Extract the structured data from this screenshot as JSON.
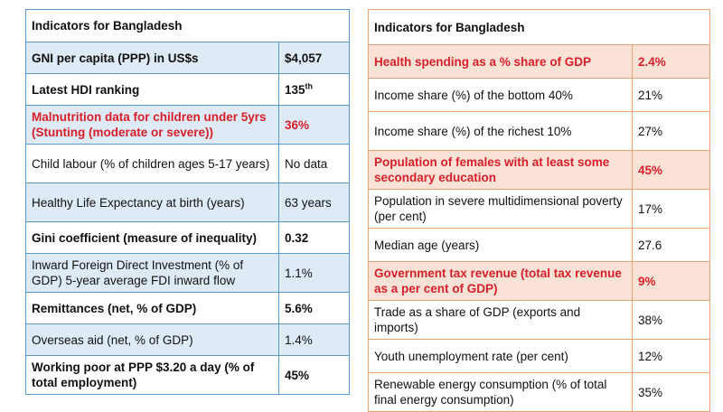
{
  "left_table": {
    "title": "Indicators for Bangladesh",
    "rows": [
      {
        "label": "GNI per capita (PPP) in US$s",
        "value": "$4,057"
      },
      {
        "label": "Latest HDI ranking",
        "value": "135",
        "value_sup": "th"
      },
      {
        "label": "Malnutrition data for children under 5yrs (Stunting (moderate or severe))",
        "value": "36%"
      },
      {
        "label": "Child labour (% of children ages 5-17 years)",
        "value": "No data"
      },
      {
        "label": "Healthy Life Expectancy at birth (years)",
        "value": "63 years"
      },
      {
        "label": "Gini coefficient (measure of inequality)",
        "value": "0.32"
      },
      {
        "label": "Inward Foreign Direct Investment (% of GDP) 5-year average FDI inward flow",
        "value": "1.1%"
      },
      {
        "label": "Remittances (net, % of GDP)",
        "value": "5.6%"
      },
      {
        "label": "Overseas aid (net, % of GDP)",
        "value": "1.4%"
      },
      {
        "label": "Working poor at PPP $3.20 a day (% of total employment)",
        "value": "45%"
      }
    ]
  },
  "right_table": {
    "title": "Indicators for Bangladesh",
    "rows": [
      {
        "label": "Health spending as a % share of GDP",
        "value": "2.4%"
      },
      {
        "label": "Income share (%) of the bottom 40%",
        "value": "21%"
      },
      {
        "label": "Income share (%) of the richest 10%",
        "value": "27%"
      },
      {
        "label": "Population of females with at least some secondary education",
        "value": "45%"
      },
      {
        "label": "Population in severe multidimensional poverty (per cent)",
        "value": "17%"
      },
      {
        "label": "Median age (years)",
        "value": "27.6"
      },
      {
        "label": "Government tax revenue (total tax revenue as a per cent of GDP)",
        "value": "9%"
      },
      {
        "label": "Trade as a share of GDP (exports and imports)",
        "value": "38%"
      },
      {
        "label": "Youth unemployment rate (per cent)",
        "value": "12%"
      },
      {
        "label": "Renewable energy consumption (% of total final energy consumption)",
        "value": "35%"
      }
    ]
  },
  "colors": {
    "left_border": "#5b9bd5",
    "left_shade": "#deeaf6",
    "right_border": "#f0a372",
    "right_shade": "#fbe2d6",
    "highlight_text": "#d9202a"
  }
}
